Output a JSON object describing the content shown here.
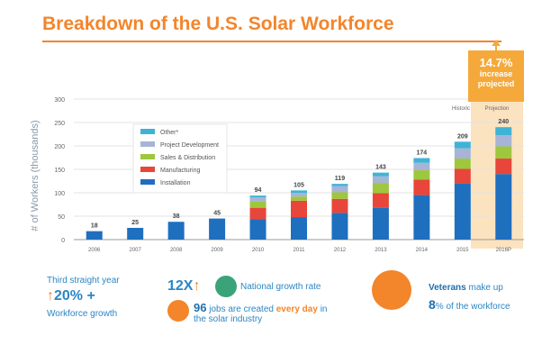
{
  "title": "Breakdown of the U.S. Solar Workforce",
  "projection_callout": {
    "percent": "14.7%",
    "line1": "increase",
    "line2": "projected"
  },
  "chart_data": {
    "type": "bar",
    "stacked": true,
    "ylabel": "# of Workers (thousands)",
    "xlabel": "",
    "ylim": [
      0,
      300
    ],
    "yticks": [
      0,
      50,
      100,
      150,
      200,
      250,
      300
    ],
    "categories": [
      "2006",
      "2007",
      "2008",
      "2009",
      "2010",
      "2011",
      "2012",
      "2013",
      "2014",
      "2015",
      "2016P"
    ],
    "totals": [
      18,
      25,
      38,
      45,
      94,
      105,
      119,
      143,
      174,
      209,
      240
    ],
    "total_labels": [
      "18",
      "25",
      "38",
      "45",
      "94",
      "105",
      "119",
      "143",
      "174",
      "209",
      "240"
    ],
    "legend_position": "top-left",
    "series": [
      {
        "name": "Installation",
        "color": "#1f6fbf",
        "values": [
          18,
          25,
          38,
          45,
          44,
          48,
          57,
          68,
          95,
          120,
          140
        ]
      },
      {
        "name": "Manufacturing",
        "color": "#e8463a",
        "values": [
          0,
          0,
          0,
          0,
          24,
          35,
          30,
          31,
          33,
          31,
          33
        ]
      },
      {
        "name": "Sales & Distribution",
        "color": "#9ec73d",
        "values": [
          0,
          0,
          0,
          0,
          14,
          9,
          14,
          22,
          20,
          22,
          26
        ]
      },
      {
        "name": "Project Development",
        "color": "#a7b4d6",
        "values": [
          0,
          0,
          0,
          0,
          8,
          8,
          13,
          14,
          16,
          22,
          24
        ]
      },
      {
        "name": "Other*",
        "color": "#3fb3d6",
        "values": [
          0,
          0,
          0,
          0,
          4,
          5,
          5,
          8,
          10,
          14,
          17
        ]
      }
    ],
    "historic_label": "Historic",
    "projection_label": "Projection"
  },
  "stats": {
    "years": {
      "line1": "Third straight year",
      "value": "20% +",
      "line3": "Workforce growth"
    },
    "national": {
      "multiplier": "12X",
      "text": "National growth rate"
    },
    "jobs": {
      "number": "96",
      "pre": "jobs are created",
      "highlight": "every day",
      "post": "in",
      "line2": "the solar industry"
    },
    "veterans": {
      "highlight": "Veterans",
      "post": "make up",
      "number": "8",
      "rest": "% of the workforce"
    }
  },
  "colors": {
    "accent": "#f3852b",
    "text_blue": "#2b86c5",
    "projection_bg": "#fbe3c0"
  }
}
